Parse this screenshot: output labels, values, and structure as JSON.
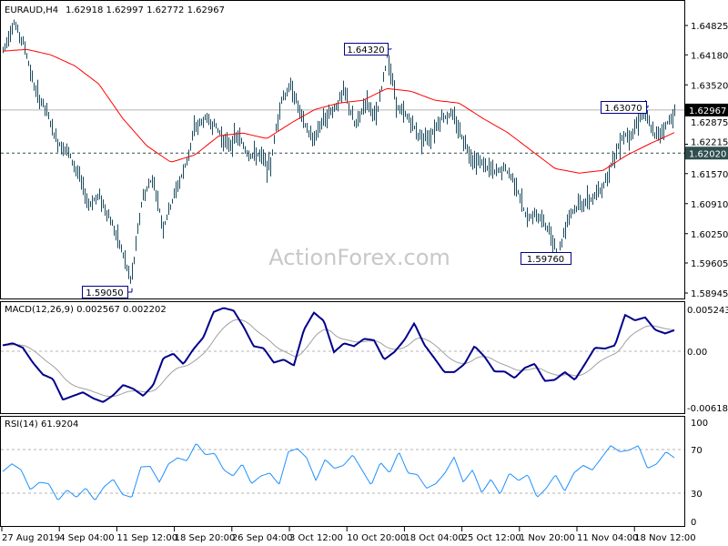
{
  "header": {
    "symbol": "EURAUD,H4",
    "ohlc": "1.62918 1.62997 1.62772 1.62967"
  },
  "watermark": "ActionForex.com",
  "colors": {
    "price_bars": "#1b4b5e",
    "moving_average": "#ff0000",
    "macd_main": "#00008b",
    "macd_signal": "#a0a0a0",
    "rsi": "#1e90ff",
    "current_price_label_bg": "#000000",
    "level_label_bg": "#2f4f4f"
  },
  "chart_data": [
    {
      "type": "ohlc-line",
      "title": "EURAUD,H4 1.62918 1.62997 1.62772 1.62967",
      "ylim": [
        1.58945,
        1.6514
      ],
      "y_ticks": [
        "1.64825",
        "1.64180",
        "1.63520",
        "1.62875",
        "1.62215",
        "1.61570",
        "1.60910",
        "1.60250",
        "1.59605",
        "1.58945"
      ],
      "current_price": "1.62967",
      "level_line": "1.62020",
      "x_ticks": [
        "27 Aug 2019",
        "4 Sep 04:00",
        "11 Sep 12:00",
        "18 Sep 20:00",
        "26 Sep 04:00",
        "3 Oct 12:00",
        "10 Oct 20:00",
        "18 Oct 04:00",
        "25 Oct 12:00",
        "1 Nov 20:00",
        "11 Nov 04:00",
        "18 Nov 12:00"
      ],
      "close_approx": [
        1.64285,
        1.64885,
        1.64385,
        1.63385,
        1.62985,
        1.62285,
        1.62085,
        1.61585,
        1.60885,
        1.61085,
        1.60585,
        1.59985,
        1.59185,
        1.60985,
        1.61485,
        1.60385,
        1.61085,
        1.61685,
        1.62585,
        1.62785,
        1.62585,
        1.62185,
        1.62385,
        1.61985,
        1.61985,
        1.61685,
        1.63185,
        1.63485,
        1.62785,
        1.62285,
        1.62785,
        1.62985,
        1.63385,
        1.62585,
        1.63185,
        1.62785,
        1.64185,
        1.62985,
        1.62785,
        1.62385,
        1.62385,
        1.62785,
        1.62885,
        1.62385,
        1.61885,
        1.61785,
        1.61585,
        1.61685,
        1.61385,
        1.60585,
        1.60685,
        1.60385,
        1.59785,
        1.60685,
        1.60885,
        1.60985,
        1.61185,
        1.61785,
        1.62385,
        1.62485,
        1.62985,
        1.62385,
        1.62585,
        1.62967
      ],
      "moving_average_approx": [
        1.6426,
        1.643,
        1.6418,
        1.6394,
        1.6354,
        1.6278,
        1.6218,
        1.6182,
        1.6198,
        1.624,
        1.6246,
        1.6234,
        1.6268,
        1.6298,
        1.6312,
        1.6318,
        1.6344,
        1.6338,
        1.6318,
        1.6312,
        1.6278,
        1.6248,
        1.6208,
        1.6168,
        1.6158,
        1.6164,
        1.6198,
        1.6224,
        1.6248
      ],
      "annotations": [
        {
          "label": "1.64320",
          "value": 1.6432
        },
        {
          "label": "1.59050",
          "value": 1.5905
        },
        {
          "label": "1.59760",
          "value": 1.5976
        },
        {
          "label": "1.63070",
          "value": 1.6307
        }
      ]
    },
    {
      "type": "line",
      "title": "MACD(12,26,9) 0.002567 0.002202",
      "ylim": [
        -0.006186,
        0.005243
      ],
      "y_ticks": [
        "0.005243",
        "0.00",
        "-0.006186"
      ],
      "series": [
        {
          "name": "MACD",
          "values": [
            0.00071,
            0.00096,
            0.00043,
            -0.00136,
            -0.00279,
            -0.00332,
            -0.00582,
            -0.00536,
            -0.00493,
            -0.00564,
            -0.0061,
            -0.00529,
            -0.00404,
            -0.0045,
            -0.00536,
            -0.00404,
            -0.00082,
            -0.00029,
            -0.00154,
            0.00025,
            0.00168,
            0.00471,
            0.0052,
            0.00489,
            0.00293,
            0.00061,
            0.00036,
            -0.00136,
            -0.001,
            -0.00171,
            0.00257,
            0.00464,
            0.00364,
            -0.00011,
            0.00096,
            0.00061,
            0.0015,
            0.00132,
            -0.001,
            -0.00011,
            0.00132,
            0.00336,
            0.00079,
            -0.00082,
            -0.0025,
            -0.0025,
            -0.00154,
            0.00061,
            -0.00064,
            -0.00243,
            -0.00243,
            -0.00321,
            -0.002,
            -0.0015,
            -0.00357,
            -0.00343,
            -0.0025,
            -0.00343,
            -0.00154,
            0.00043,
            0.00032,
            0.00071,
            0.00436,
            0.00371,
            0.00407,
            0.00257,
            0.00214,
            0.002567
          ]
        }
      ]
    },
    {
      "type": "line",
      "title": "RSI(14) 61.9204",
      "ylim": [
        0,
        100
      ],
      "y_ticks": [
        "100",
        "70",
        "30",
        "0"
      ],
      "levels": [
        70,
        30
      ],
      "series": [
        {
          "name": "RSI",
          "values": [
            49.9,
            56.9,
            51.3,
            33.1,
            40.1,
            38.7,
            23.3,
            33.1,
            26.1,
            35.0,
            23.3,
            35.9,
            42.9,
            28.9,
            26.1,
            54.1,
            54.6,
            40.1,
            56.9,
            62.4,
            59.7,
            75.9,
            65.2,
            66.6,
            51.3,
            45.7,
            56.9,
            38.7,
            45.7,
            48.5,
            37.8,
            68.0,
            70.8,
            62.4,
            41.5,
            61.0,
            52.7,
            55.5,
            65.2,
            51.3,
            37.3,
            58.3,
            48.5,
            68.0,
            48.5,
            47.1,
            34.5,
            38.7,
            48.5,
            63.0,
            40.1,
            51.3,
            30.3,
            42.9,
            28.9,
            48.5,
            41.5,
            47.1,
            26.1,
            34.5,
            47.1,
            31.7,
            48.5,
            55.5,
            51.3,
            62.4,
            73.6,
            68.0,
            69.4,
            73.6,
            52.7,
            56.9,
            68.0,
            61.9204
          ]
        }
      ]
    }
  ]
}
